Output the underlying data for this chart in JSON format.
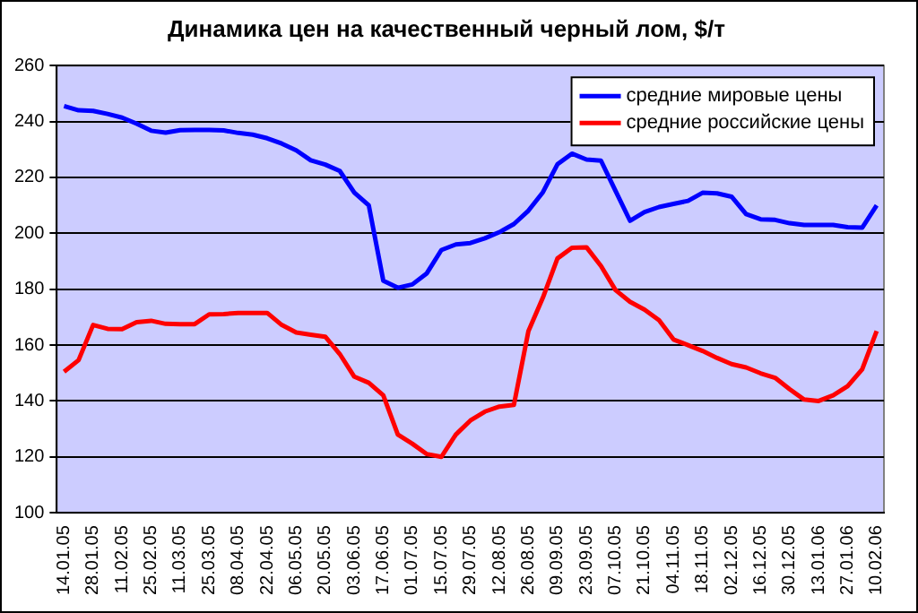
{
  "chart_data": {
    "type": "line",
    "title": "Динамика цен на качественный черный лом, $/т",
    "categories": [
      "14.01.05",
      null,
      "28.01.05",
      null,
      "11.02.05",
      null,
      "25.02.05",
      null,
      "11.03.05",
      null,
      "25.03.05",
      null,
      "08.04.05",
      null,
      "22.04.05",
      null,
      "06.05.05",
      null,
      "20.05.05",
      null,
      "03.06.05",
      null,
      "17.06.05",
      null,
      "01.07.05",
      null,
      "15.07.05",
      null,
      "29.07.05",
      null,
      "12.08.05",
      null,
      "26.08.05",
      null,
      "09.09.05",
      null,
      "23.09.05",
      null,
      "07.10.05",
      null,
      "21.10.05",
      null,
      "04.11.05",
      null,
      "18.11.05",
      null,
      "02.12.05",
      null,
      "16.12.05",
      null,
      "30.12.05",
      null,
      "13.01.06",
      null,
      "27.01.06",
      null,
      "10.02.06"
    ],
    "series": [
      {
        "name": "средние мировые цены",
        "color": "#0000ff",
        "values": [
          245.5,
          244,
          243.8,
          242.7,
          241.4,
          239.2,
          236.7,
          236,
          236.9,
          237,
          237,
          236.8,
          235.9,
          235.3,
          234,
          232.1,
          229.7,
          226.1,
          224.6,
          222.3,
          214.6,
          210,
          183,
          180.5,
          181.7,
          185.7,
          194,
          196,
          196.5,
          198.2,
          200.4,
          203.3,
          208.1,
          214.7,
          224.7,
          228.5,
          226.4,
          226,
          215.2,
          204.5,
          207.6,
          209.4,
          210.5,
          211.6,
          214.5,
          214.3,
          213.1,
          206.9,
          205,
          204.8,
          203.6,
          203,
          203,
          203,
          202.2,
          202,
          210
        ]
      },
      {
        "name": "средние российские цены",
        "color": "#ff0000",
        "values": [
          150.5,
          154.6,
          167.2,
          165.8,
          165.7,
          168.2,
          168.7,
          167.6,
          167.5,
          167.5,
          171,
          171.1,
          171.5,
          171.5,
          171.5,
          167.2,
          164.5,
          163.7,
          163,
          156.8,
          148.7,
          146.5,
          142,
          128,
          124.7,
          121,
          120,
          128,
          133,
          136.2,
          138,
          138.6,
          165,
          177,
          191,
          194.8,
          195,
          188.3,
          179.7,
          175.5,
          172.7,
          168.9,
          162,
          160,
          157.9,
          155.4,
          153.2,
          152,
          149.9,
          148.3,
          144.2,
          140.5,
          140,
          142,
          145.3,
          151.3,
          165
        ]
      }
    ],
    "ylim": [
      100,
      260
    ],
    "yticks": [
      100,
      120,
      140,
      160,
      180,
      200,
      220,
      240,
      260
    ],
    "grid": "y",
    "legend": "top right",
    "marker": "none",
    "line_style": "solid"
  }
}
